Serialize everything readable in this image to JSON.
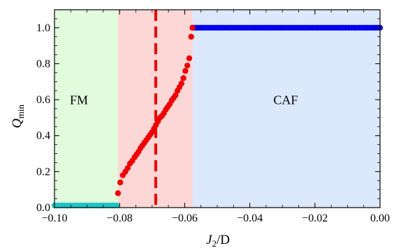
{
  "chart_data": {
    "type": "scatter",
    "xlabel": {
      "main": "J",
      "sub": "2",
      "suffix": "/D"
    },
    "ylabel": {
      "main": "Q",
      "sub": "min"
    },
    "xlim": [
      -0.1,
      0.0
    ],
    "ylim": [
      0.0,
      1.1
    ],
    "xticks": [
      -0.1,
      -0.08,
      -0.06,
      -0.04,
      -0.02,
      0.0
    ],
    "xtick_labels": [
      "−0.10",
      "−0.08",
      "−0.06",
      "−0.04",
      "−0.02",
      "0.00"
    ],
    "yticks": [
      0.0,
      0.2,
      0.4,
      0.6,
      0.8,
      1.0
    ],
    "ytick_labels": [
      "0.0",
      "0.2",
      "0.4",
      "0.6",
      "0.8",
      "1.0"
    ],
    "regions": [
      {
        "label": "FM",
        "x_range": [
          -0.1,
          -0.0805
        ],
        "color": "#e1fbdc",
        "label_x": -0.0925,
        "label_y": 0.575
      },
      {
        "label": "",
        "x_range": [
          -0.0805,
          -0.0576
        ],
        "color": "#fdd6d6"
      },
      {
        "label": "CAF",
        "x_range": [
          -0.0576,
          0.0
        ],
        "color": "#dce8fb",
        "label_x": -0.029,
        "label_y": 0.575
      }
    ],
    "vline": {
      "x": -0.0689,
      "color": "#ee0000",
      "style": "dashed"
    },
    "series": [
      {
        "color": "#1cc4c4",
        "x": [
          -0.1,
          -0.099,
          -0.098,
          -0.097,
          -0.096,
          -0.095,
          -0.094,
          -0.093,
          -0.092,
          -0.091,
          -0.09,
          -0.089,
          -0.088,
          -0.087,
          -0.086,
          -0.085,
          -0.084,
          -0.083,
          -0.082,
          -0.081
        ],
        "y": [
          0.012,
          0.012,
          0.012,
          0.012,
          0.012,
          0.012,
          0.012,
          0.012,
          0.012,
          0.012,
          0.012,
          0.012,
          0.012,
          0.012,
          0.012,
          0.012,
          0.012,
          0.012,
          0.012,
          0.012
        ]
      },
      {
        "color": "#ee0000",
        "x": [
          -0.0805,
          -0.0798,
          -0.079,
          -0.0782,
          -0.0775,
          -0.0768,
          -0.0761,
          -0.0754,
          -0.0748,
          -0.0742,
          -0.0736,
          -0.073,
          -0.0724,
          -0.0718,
          -0.0712,
          -0.0706,
          -0.07,
          -0.0694,
          -0.0688,
          -0.0682,
          -0.0676,
          -0.067,
          -0.0664,
          -0.0658,
          -0.0652,
          -0.0646,
          -0.064,
          -0.0634,
          -0.0628,
          -0.0622,
          -0.0616,
          -0.061,
          -0.0604,
          -0.0598,
          -0.0592,
          -0.0586,
          -0.058
        ],
        "y": [
          0.08,
          0.14,
          0.18,
          0.2,
          0.22,
          0.245,
          0.26,
          0.28,
          0.295,
          0.31,
          0.33,
          0.345,
          0.36,
          0.375,
          0.39,
          0.405,
          0.42,
          0.44,
          0.46,
          0.48,
          0.5,
          0.51,
          0.525,
          0.545,
          0.56,
          0.575,
          0.595,
          0.61,
          0.625,
          0.65,
          0.67,
          0.69,
          0.72,
          0.76,
          0.79,
          0.83,
          0.95
        ]
      },
      {
        "color": "#0000ee",
        "x": [
          -0.0576,
          -0.0568,
          -0.056,
          -0.0552,
          -0.0544,
          -0.0536,
          -0.0528,
          -0.052,
          -0.0512,
          -0.0504,
          -0.0496,
          -0.0488,
          -0.048,
          -0.0472,
          -0.0464,
          -0.0456,
          -0.0448,
          -0.044,
          -0.0432,
          -0.0424,
          -0.0416,
          -0.0408,
          -0.04,
          -0.0392,
          -0.0384,
          -0.0376,
          -0.0368,
          -0.036,
          -0.0352,
          -0.0344,
          -0.0336,
          -0.0328,
          -0.032,
          -0.0312,
          -0.0304,
          -0.0296,
          -0.0288,
          -0.028,
          -0.0272,
          -0.0264,
          -0.0256,
          -0.0248,
          -0.024,
          -0.0232,
          -0.0224,
          -0.0216,
          -0.0208,
          -0.02,
          -0.0192,
          -0.0184,
          -0.0176,
          -0.0168,
          -0.016,
          -0.0152,
          -0.0144,
          -0.0136,
          -0.0128,
          -0.012,
          -0.0112,
          -0.0104,
          -0.0096,
          -0.0088,
          -0.008,
          -0.0072,
          -0.0064,
          -0.0056,
          -0.0048,
          -0.004,
          -0.0032,
          -0.0024,
          -0.0016,
          -0.0008,
          0.0
        ],
        "y": [
          1.0,
          1.0,
          1.0,
          1.0,
          1.0,
          1.0,
          1.0,
          1.0,
          1.0,
          1.0,
          1.0,
          1.0,
          1.0,
          1.0,
          1.0,
          1.0,
          1.0,
          1.0,
          1.0,
          1.0,
          1.0,
          1.0,
          1.0,
          1.0,
          1.0,
          1.0,
          1.0,
          1.0,
          1.0,
          1.0,
          1.0,
          1.0,
          1.0,
          1.0,
          1.0,
          1.0,
          1.0,
          1.0,
          1.0,
          1.0,
          1.0,
          1.0,
          1.0,
          1.0,
          1.0,
          1.0,
          1.0,
          1.0,
          1.0,
          1.0,
          1.0,
          1.0,
          1.0,
          1.0,
          1.0,
          1.0,
          1.0,
          1.0,
          1.0,
          1.0,
          1.0,
          1.0,
          1.0,
          1.0,
          1.0,
          1.0,
          1.0,
          1.0,
          1.0,
          1.0,
          1.0,
          1.0,
          1.0
        ]
      },
      {
        "color": "#ee0000",
        "x": [
          -0.0576
        ],
        "y": [
          1.0
        ]
      }
    ]
  }
}
